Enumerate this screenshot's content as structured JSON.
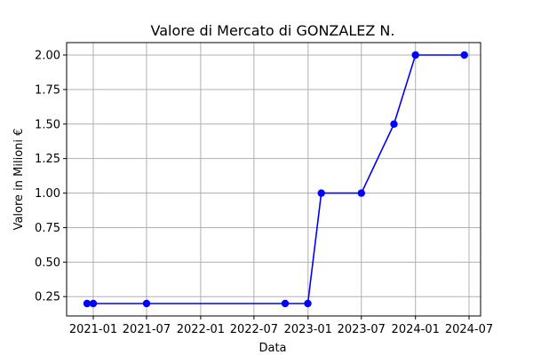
{
  "chart_data": {
    "type": "line",
    "title": "Valore di Mercato di GONZALEZ N.",
    "xlabel": "Data",
    "ylabel": "Valore in Milioni €",
    "x_ticks": [
      "2021-01",
      "2021-07",
      "2022-01",
      "2022-07",
      "2023-01",
      "2023-07",
      "2024-01",
      "2024-07"
    ],
    "y_ticks": [
      "0.25",
      "0.50",
      "0.75",
      "1.00",
      "1.25",
      "1.50",
      "1.75",
      "2.00"
    ],
    "ylim": [
      0.11,
      2.09
    ],
    "grid": true,
    "line_color": "#0000ff",
    "marker": "circle",
    "series": [
      {
        "points": [
          {
            "x": "2020-12-11",
            "y": 0.2
          },
          {
            "x": "2021-01-01",
            "y": 0.2
          },
          {
            "x": "2021-07-01",
            "y": 0.2
          },
          {
            "x": "2022-10-15",
            "y": 0.2
          },
          {
            "x": "2022-12-31",
            "y": 0.2
          },
          {
            "x": "2023-02-15",
            "y": 1.0
          },
          {
            "x": "2023-07-01",
            "y": 1.0
          },
          {
            "x": "2023-10-20",
            "y": 1.5
          },
          {
            "x": "2024-01-01",
            "y": 2.0
          },
          {
            "x": "2024-06-15",
            "y": 2.0
          }
        ]
      }
    ]
  }
}
